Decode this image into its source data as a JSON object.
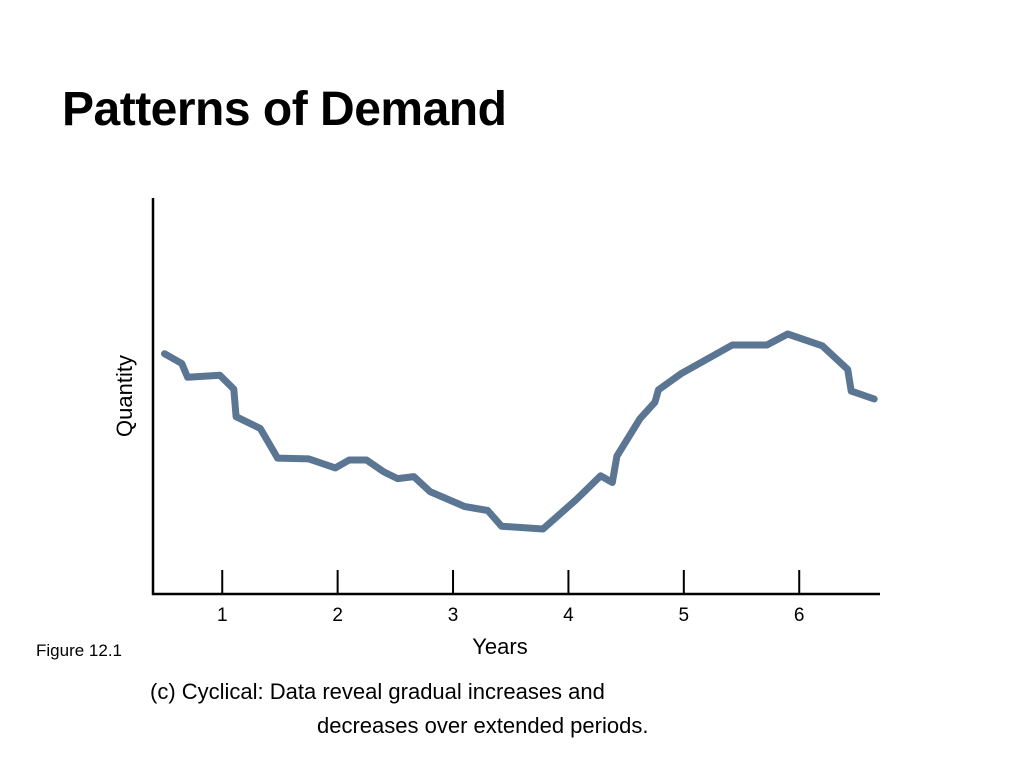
{
  "slide": {
    "title": "Patterns of Demand",
    "figure_label": "Figure 12.1",
    "caption_line_1": "(c) Cyclical: Data reveal gradual increases and",
    "caption_line_2": "decreases over extended periods."
  },
  "chart_data": {
    "type": "line",
    "title": "",
    "xlabel": "Years",
    "ylabel": "Quantity",
    "x_ticks": [
      1,
      2,
      3,
      4,
      5,
      6
    ],
    "xlim": [
      0.4,
      6.7
    ],
    "ylim": [
      0,
      10
    ],
    "y_ticks_shown": false,
    "grid": false,
    "legend": "none",
    "series": [
      {
        "color": "#5b7693",
        "points": [
          [
            0.5,
            6.1
          ],
          [
            0.65,
            5.85
          ],
          [
            0.7,
            5.5
          ],
          [
            0.98,
            5.55
          ],
          [
            1.1,
            5.2
          ],
          [
            1.12,
            4.5
          ],
          [
            1.33,
            4.2
          ],
          [
            1.48,
            3.45
          ],
          [
            1.75,
            3.43
          ],
          [
            1.98,
            3.2
          ],
          [
            2.1,
            3.4
          ],
          [
            2.25,
            3.4
          ],
          [
            2.4,
            3.1
          ],
          [
            2.52,
            2.93
          ],
          [
            2.66,
            2.98
          ],
          [
            2.8,
            2.6
          ],
          [
            3.1,
            2.22
          ],
          [
            3.3,
            2.12
          ],
          [
            3.42,
            1.72
          ],
          [
            3.78,
            1.65
          ],
          [
            4.07,
            2.4
          ],
          [
            4.28,
            3.0
          ],
          [
            4.38,
            2.83
          ],
          [
            4.42,
            3.5
          ],
          [
            4.62,
            4.45
          ],
          [
            4.75,
            4.87
          ],
          [
            4.78,
            5.18
          ],
          [
            4.98,
            5.6
          ],
          [
            5.42,
            6.32
          ],
          [
            5.72,
            6.32
          ],
          [
            5.9,
            6.6
          ],
          [
            6.2,
            6.3
          ],
          [
            6.42,
            5.7
          ],
          [
            6.45,
            5.15
          ],
          [
            6.65,
            4.95
          ]
        ]
      }
    ]
  }
}
